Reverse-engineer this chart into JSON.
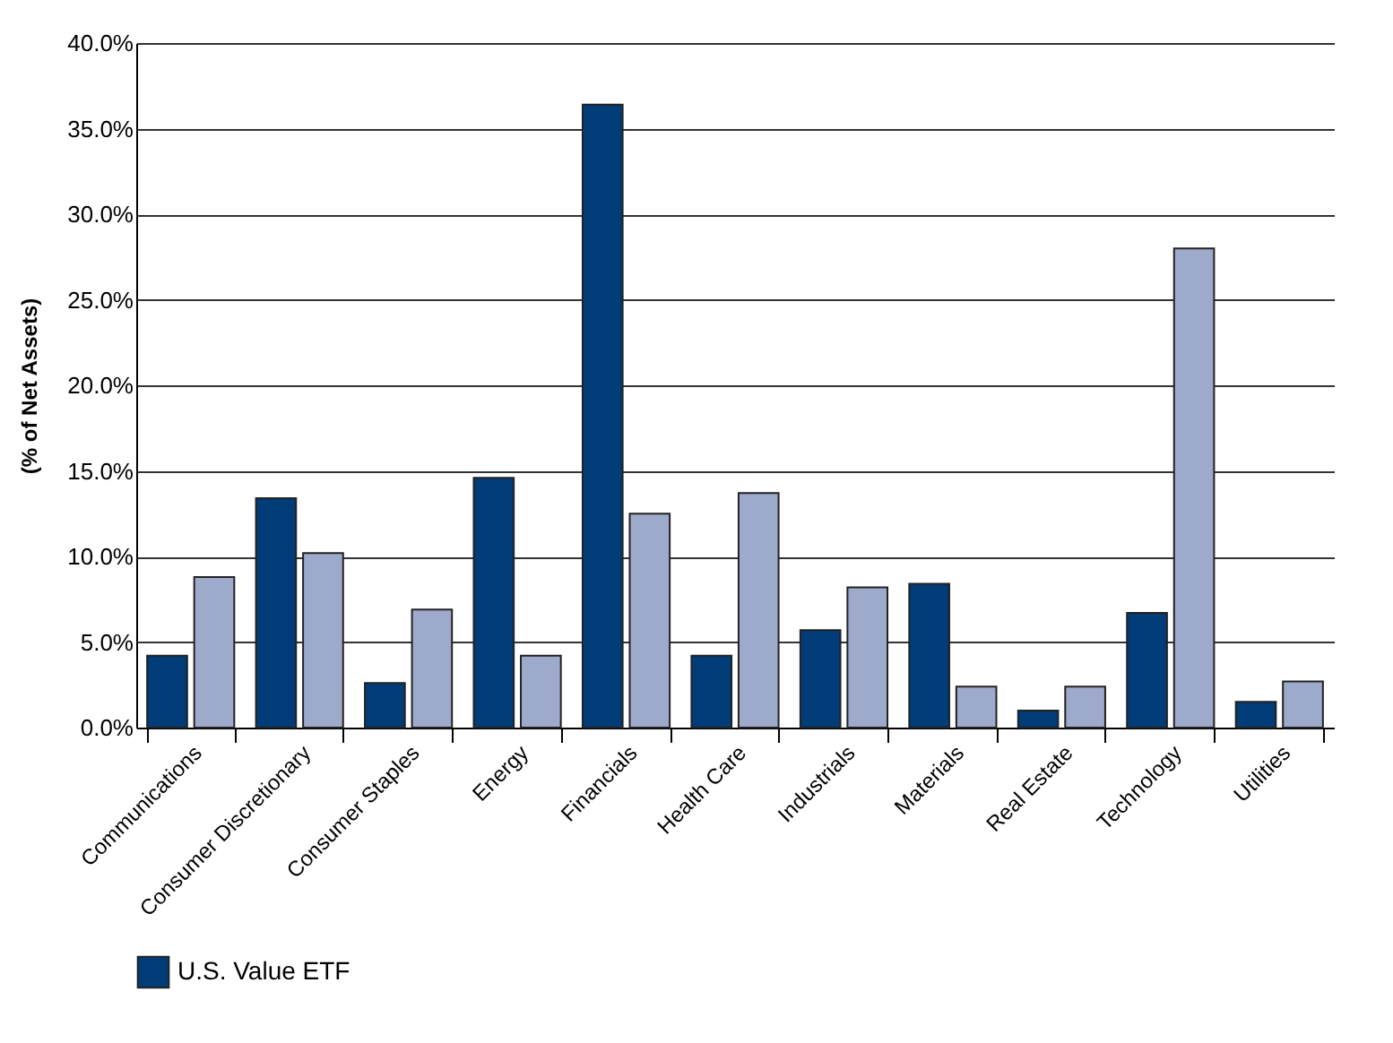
{
  "chart_data": {
    "type": "bar",
    "ylabel": "(% of Net Assets)",
    "categories": [
      "Communications",
      "Consumer Discretionary",
      "Consumer Staples",
      "Energy",
      "Financials",
      "Health Care",
      "Industrials",
      "Materials",
      "Real Estate",
      "Technology",
      "Utilities"
    ],
    "series": [
      {
        "name": "U.S. Value ETF",
        "color": "#003c78",
        "values": [
          4.2,
          13.4,
          2.6,
          14.6,
          36.4,
          4.2,
          5.7,
          8.4,
          1.0,
          6.7,
          1.5
        ]
      },
      {
        "color": "#9eaacb",
        "values": [
          8.8,
          10.2,
          6.9,
          4.2,
          12.5,
          13.7,
          8.2,
          2.4,
          2.4,
          28.0,
          2.7
        ]
      }
    ],
    "ylim": [
      0,
      40
    ],
    "yticks": [
      {
        "value": 0,
        "label": "0.0%"
      },
      {
        "value": 5,
        "label": "5.0%"
      },
      {
        "value": 10,
        "label": "10.0%"
      },
      {
        "value": 15,
        "label": "15.0%"
      },
      {
        "value": 20,
        "label": "20.0%"
      },
      {
        "value": 25,
        "label": "25.0%"
      },
      {
        "value": 30,
        "label": "30.0%"
      },
      {
        "value": 35,
        "label": "35.0%"
      },
      {
        "value": 40,
        "label": "40.0%"
      }
    ],
    "grid": "y",
    "legend": "bottom"
  }
}
